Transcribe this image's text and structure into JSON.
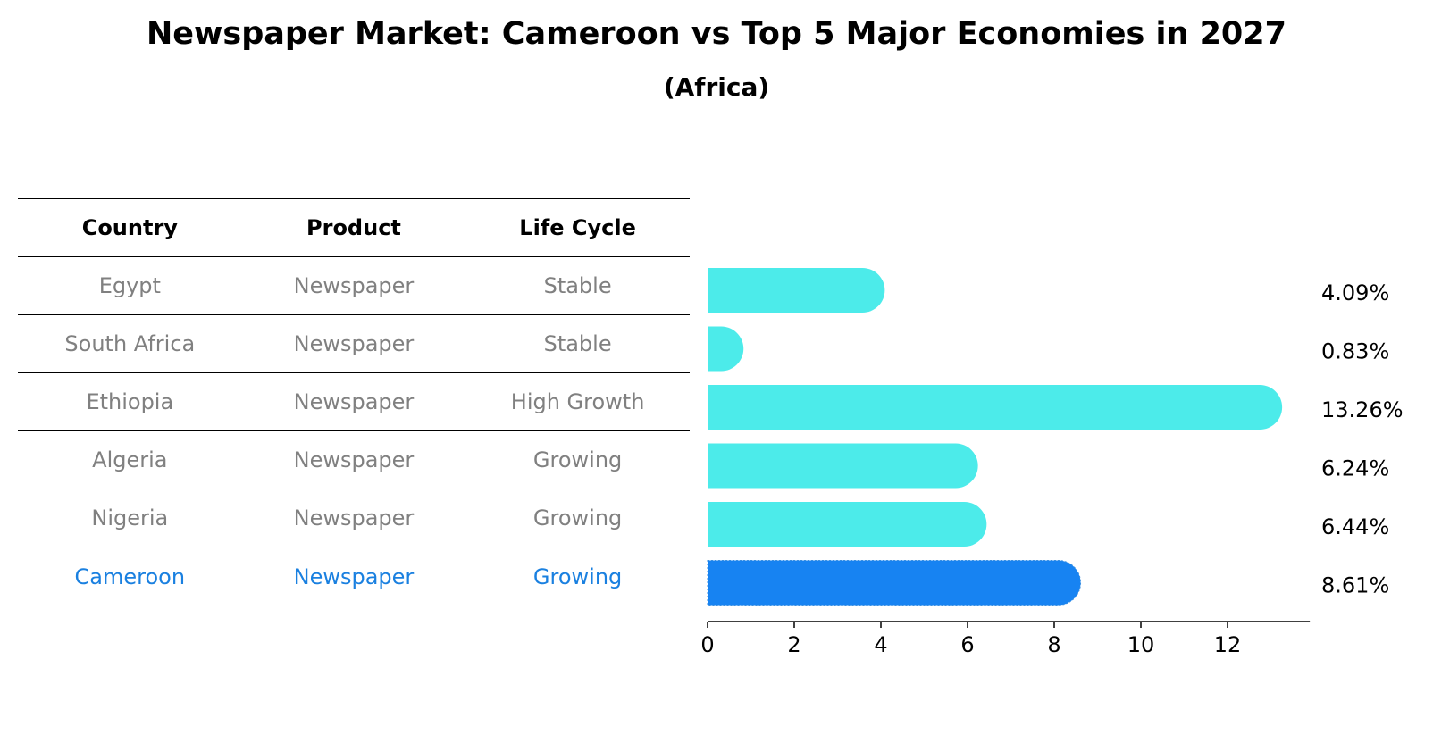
{
  "title": "Newspaper Market: Cameroon vs Top 5 Major Economies in 2027",
  "subtitle": "(Africa)",
  "colors": {
    "bar": "#4cebea",
    "highlight_bar": "#1783f2",
    "muted_text": "#808080",
    "highlight_text": "#1a80e0"
  },
  "table": {
    "headers": [
      "Country",
      "Product",
      "Life Cycle"
    ],
    "rows": [
      {
        "country": "Egypt",
        "product": "Newspaper",
        "life_cycle": "Stable"
      },
      {
        "country": "South Africa",
        "product": "Newspaper",
        "life_cycle": "Stable"
      },
      {
        "country": "Ethiopia",
        "product": "Newspaper",
        "life_cycle": "High Growth"
      },
      {
        "country": "Algeria",
        "product": "Newspaper",
        "life_cycle": "Growing"
      },
      {
        "country": "Nigeria",
        "product": "Newspaper",
        "life_cycle": "Growing"
      },
      {
        "country": "Cameroon",
        "product": "Newspaper",
        "life_cycle": "Growing"
      }
    ]
  },
  "chart_data": {
    "type": "bar",
    "orientation": "horizontal",
    "categories": [
      "Egypt",
      "South Africa",
      "Ethiopia",
      "Algeria",
      "Nigeria",
      "Cameroon"
    ],
    "values": [
      4.09,
      0.83,
      13.26,
      6.24,
      6.44,
      8.61
    ],
    "value_labels": [
      "4.09%",
      "0.83%",
      "13.26%",
      "6.24%",
      "6.44%",
      "8.61%"
    ],
    "highlight": "Cameroon",
    "xticks": [
      0,
      2,
      4,
      6,
      8,
      10,
      12
    ],
    "xlim": [
      0,
      13.9
    ],
    "grid": false,
    "legend": false
  }
}
